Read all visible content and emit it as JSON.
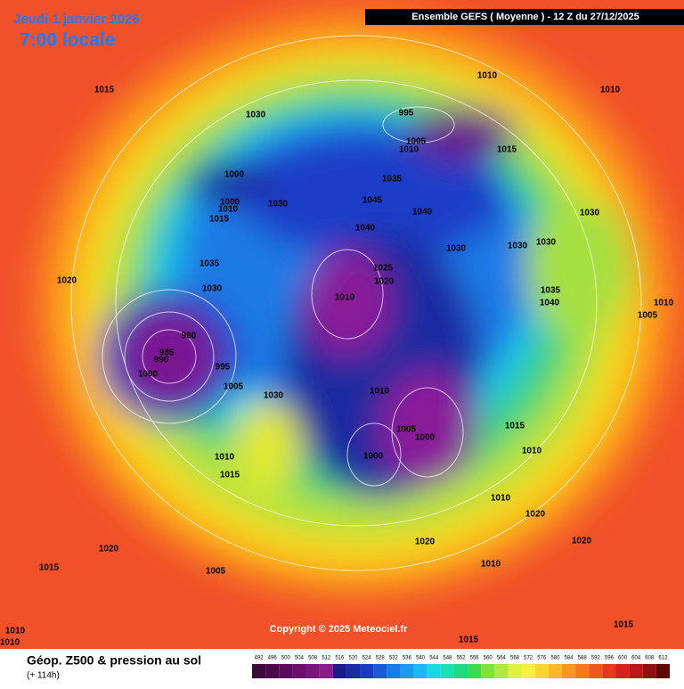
{
  "header": {
    "date": "Jeudi 1 janvier 2026",
    "time": "7:00 locale",
    "model": "Ensemble GEFS  ( Moyenne )  -  12 Z du 27/12/2025"
  },
  "copyright": "Copyright © 2025 Meteociel.fr",
  "footer": {
    "title": "Géop. Z500 & pression au sol",
    "subtitle": "(+ 114h)"
  },
  "legend": {
    "levels": [
      492,
      496,
      500,
      504,
      508,
      512,
      516,
      520,
      524,
      528,
      532,
      536,
      540,
      544,
      548,
      552,
      556,
      560,
      564,
      568,
      572,
      576,
      580,
      584,
      588,
      592,
      596,
      600,
      604,
      608,
      612
    ]
  },
  "isobar_labels": [
    1015,
    1030,
    1010,
    1010,
    995,
    1005,
    1010,
    1015,
    1000,
    1035,
    1030,
    1045,
    1040,
    1040,
    1015,
    1010,
    1000,
    1030,
    1030,
    1030,
    1030,
    1035,
    1025,
    1020,
    1010,
    1020,
    1030,
    1035,
    1040,
    1005,
    1010,
    980,
    985,
    990,
    1000,
    995,
    1005,
    1030,
    1010,
    1005,
    1000,
    1000,
    1015,
    1010,
    1010,
    1015,
    1010,
    1020,
    1020,
    1020,
    1020,
    1015,
    1005,
    1010,
    1015,
    1015,
    1010,
    1010
  ]
}
